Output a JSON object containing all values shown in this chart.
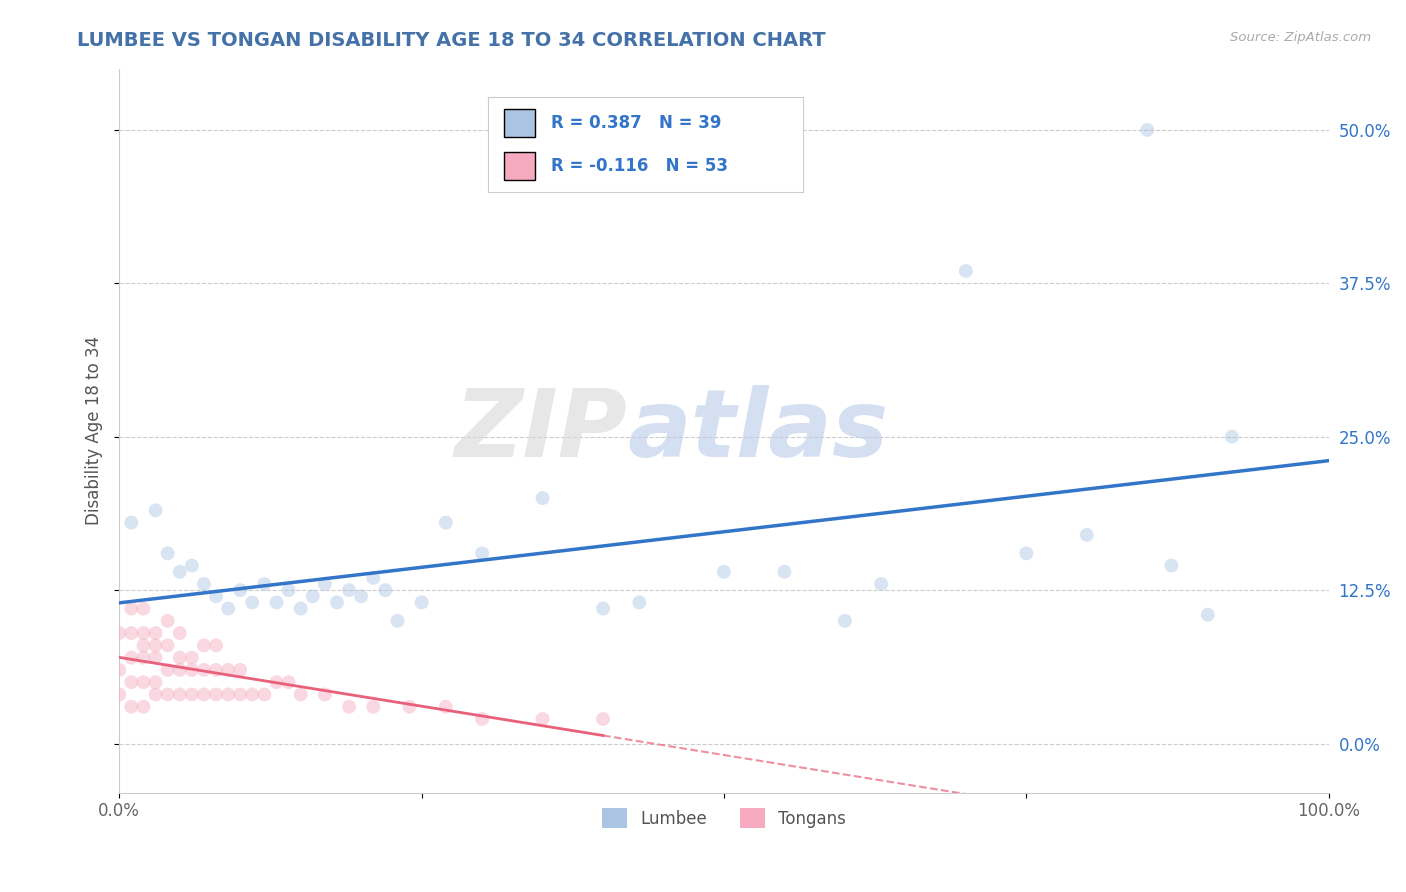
{
  "title": "LUMBEE VS TONGAN DISABILITY AGE 18 TO 34 CORRELATION CHART",
  "source_text": "Source: ZipAtlas.com",
  "ylabel": "Disability Age 18 to 34",
  "legend_labels": [
    "Lumbee",
    "Tongans"
  ],
  "lumbee_r": 0.387,
  "lumbee_n": 39,
  "tongan_r": -0.116,
  "tongan_n": 53,
  "lumbee_color": "#aac4e2",
  "tongan_color": "#f5aabf",
  "lumbee_line_color": "#3375c8",
  "tongan_line_color": "#e8607a",
  "background_color": "#ffffff",
  "grid_color": "#cccccc",
  "title_color": "#4472a8",
  "xlim": [
    0.0,
    1.0
  ],
  "ylim": [
    -0.04,
    0.55
  ],
  "yticks": [
    0.0,
    0.125,
    0.25,
    0.375,
    0.5
  ],
  "ytick_labels": [
    "0.0%",
    "12.5%",
    "25.0%",
    "37.5%",
    "50.0%"
  ],
  "xticks": [
    0.0,
    0.25,
    0.5,
    0.75,
    1.0
  ],
  "xtick_labels": [
    "0.0%",
    "",
    "",
    "",
    "100.0%"
  ],
  "lumbee_x": [
    0.01,
    0.03,
    0.04,
    0.05,
    0.06,
    0.07,
    0.08,
    0.09,
    0.1,
    0.11,
    0.12,
    0.13,
    0.14,
    0.15,
    0.16,
    0.17,
    0.18,
    0.19,
    0.2,
    0.21,
    0.22,
    0.23,
    0.25,
    0.27,
    0.3,
    0.35,
    0.4,
    0.43,
    0.5,
    0.55,
    0.6,
    0.63,
    0.7,
    0.75,
    0.8,
    0.85,
    0.87,
    0.9,
    0.92
  ],
  "lumbee_y": [
    0.18,
    0.19,
    0.155,
    0.14,
    0.145,
    0.13,
    0.12,
    0.11,
    0.125,
    0.115,
    0.13,
    0.115,
    0.125,
    0.11,
    0.12,
    0.13,
    0.115,
    0.125,
    0.12,
    0.135,
    0.125,
    0.1,
    0.115,
    0.18,
    0.155,
    0.2,
    0.11,
    0.115,
    0.14,
    0.14,
    0.1,
    0.13,
    0.385,
    0.155,
    0.17,
    0.5,
    0.145,
    0.105,
    0.25
  ],
  "tongan_x": [
    0.0,
    0.0,
    0.0,
    0.01,
    0.01,
    0.01,
    0.01,
    0.01,
    0.02,
    0.02,
    0.02,
    0.02,
    0.02,
    0.02,
    0.03,
    0.03,
    0.03,
    0.03,
    0.03,
    0.04,
    0.04,
    0.04,
    0.04,
    0.05,
    0.05,
    0.05,
    0.05,
    0.06,
    0.06,
    0.06,
    0.07,
    0.07,
    0.07,
    0.08,
    0.08,
    0.08,
    0.09,
    0.09,
    0.1,
    0.1,
    0.11,
    0.12,
    0.13,
    0.14,
    0.15,
    0.17,
    0.19,
    0.21,
    0.24,
    0.27,
    0.3,
    0.35,
    0.4
  ],
  "tongan_y": [
    0.04,
    0.06,
    0.09,
    0.03,
    0.05,
    0.07,
    0.09,
    0.11,
    0.03,
    0.05,
    0.07,
    0.08,
    0.09,
    0.11,
    0.04,
    0.05,
    0.07,
    0.08,
    0.09,
    0.04,
    0.06,
    0.08,
    0.1,
    0.04,
    0.06,
    0.07,
    0.09,
    0.04,
    0.06,
    0.07,
    0.04,
    0.06,
    0.08,
    0.04,
    0.06,
    0.08,
    0.04,
    0.06,
    0.04,
    0.06,
    0.04,
    0.04,
    0.05,
    0.05,
    0.04,
    0.04,
    0.03,
    0.03,
    0.03,
    0.03,
    0.02,
    0.02,
    0.02
  ],
  "watermark_zip": "ZIP",
  "watermark_atlas": "atlas",
  "marker_size": 100,
  "marker_alpha": 0.45,
  "figsize": [
    14.06,
    8.92
  ],
  "dpi": 100
}
